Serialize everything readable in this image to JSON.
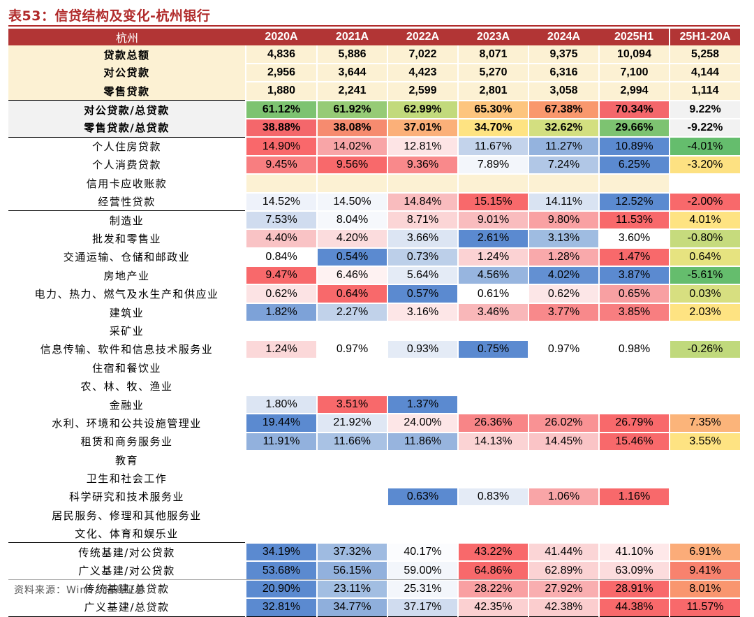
{
  "title": "表53：信贷结构及变化-杭州银行",
  "header": [
    "杭州",
    "2020A",
    "2021A",
    "2022A",
    "2023A",
    "2024A",
    "2025H1",
    "25H1-20A"
  ],
  "rows": [
    {
      "label": "贷款总额",
      "values": [
        "4,836",
        "5,886",
        "7,022",
        "8,071",
        "9,375",
        "10,094",
        "5,258"
      ],
      "colors": [
        "",
        "",
        "",
        "",
        "",
        "",
        ""
      ],
      "style": "bold hl"
    },
    {
      "label": "对公贷款",
      "values": [
        "2,956",
        "3,644",
        "4,423",
        "5,270",
        "6,316",
        "7,100",
        "4,144"
      ],
      "colors": [
        "",
        "",
        "",
        "",
        "",
        "",
        ""
      ],
      "style": "bold hl"
    },
    {
      "label": "零售贷款",
      "values": [
        "1,880",
        "2,241",
        "2,599",
        "2,801",
        "3,058",
        "2,994",
        "1,114"
      ],
      "colors": [
        "",
        "",
        "",
        "",
        "",
        "",
        ""
      ],
      "style": "bold hl"
    },
    {
      "label": "对公贷款/总贷款",
      "values": [
        "61.12%",
        "61.92%",
        "62.99%",
        "65.30%",
        "67.38%",
        "70.34%",
        "9.22%"
      ],
      "colors": [
        "#7dc371",
        "#96cb76",
        "#c2da7c",
        "#fdc57e",
        "#f9986d",
        "#f4676b",
        ""
      ],
      "style": "bold gray sep"
    },
    {
      "label": "零售贷款/总贷款",
      "values": [
        "38.88%",
        "38.08%",
        "37.01%",
        "34.70%",
        "32.62%",
        "29.66%",
        "-9.22%"
      ],
      "colors": [
        "#f4676b",
        "#f68b6f",
        "#fbb079",
        "#fee382",
        "#d3df80",
        "#7dc371",
        ""
      ],
      "style": "bold gray"
    },
    {
      "label": "个人住房贷款",
      "values": [
        "14.90%",
        "14.02%",
        "12.81%",
        "11.67%",
        "11.27%",
        "10.89%",
        "-4.01%"
      ],
      "colors": [
        "#f9686b",
        "#f8a5a7",
        "#fde4e5",
        "#c3d3eb",
        "#94b3de",
        "#5b8ad0",
        "#65bd6d"
      ],
      "style": "sep"
    },
    {
      "label": "个人消费贷款",
      "values": [
        "9.45%",
        "9.56%",
        "9.36%",
        "7.89%",
        "7.24%",
        "6.25%",
        "-3.20%"
      ],
      "colors": [
        "#f87e80",
        "#f8696b",
        "#f9898b",
        "#f3f6fb",
        "#b1c7e6",
        "#5b8ad0",
        "#fde182"
      ],
      "style": ""
    },
    {
      "label": "信用卡应收账款",
      "values": [
        "",
        "",
        "",
        "",
        "",
        "",
        ""
      ],
      "colors": [
        "#fcf1d3",
        "#fcf1d3",
        "#fcf1d3",
        "#fcf1d3",
        "#fcf1d3",
        "#fcf1d3",
        ""
      ],
      "style": ""
    },
    {
      "label": "经营性贷款",
      "values": [
        "14.52%",
        "14.50%",
        "14.84%",
        "15.15%",
        "14.11%",
        "12.52%",
        "-2.00%"
      ],
      "colors": [
        "#eef2fa",
        "#f3f6fb",
        "#f9bcbe",
        "#f8696b",
        "#d9e3f2",
        "#5b8ad0",
        "#f8696b"
      ],
      "style": ""
    },
    {
      "label": "制造业",
      "values": [
        "7.53%",
        "8.04%",
        "8.71%",
        "9.01%",
        "9.80%",
        "11.53%",
        "4.01%"
      ],
      "colors": [
        "#d0dcef",
        "#f6f8fc",
        "#fbd5d6",
        "#f9bcbe",
        "#f9a1a3",
        "#f8696b",
        "#fee382"
      ],
      "style": "sep"
    },
    {
      "label": "批发和零售业",
      "values": [
        "4.40%",
        "4.20%",
        "3.66%",
        "2.61%",
        "3.13%",
        "3.60%",
        "-0.80%"
      ],
      "colors": [
        "#f9c3c5",
        "#fbdcdd",
        "#dce5f3",
        "#5b8ad0",
        "#9fbce1",
        "#ffffff",
        "#c6db7d"
      ],
      "style": ""
    },
    {
      "label": "交通运输、仓储和邮政业",
      "values": [
        "0.84%",
        "0.54%",
        "0.73%",
        "1.24%",
        "1.28%",
        "1.47%",
        "0.64%"
      ],
      "colors": [
        "#ffffff",
        "#5b8ad0",
        "#bccfe9",
        "#fbd2d3",
        "#f9a9ab",
        "#f8696b",
        "#e6e380"
      ],
      "style": ""
    },
    {
      "label": "房地产业",
      "values": [
        "9.47%",
        "6.46%",
        "5.64%",
        "4.56%",
        "4.02%",
        "3.87%",
        "-5.61%"
      ],
      "colors": [
        "#f8696b",
        "#fef2f2",
        "#e4ebf6",
        "#97b5df",
        "#6390d2",
        "#5b8ad0",
        "#65bd6d"
      ],
      "style": ""
    },
    {
      "label": "电力、热力、燃气及水生产和供应业",
      "values": [
        "0.62%",
        "0.64%",
        "0.57%",
        "0.61%",
        "0.62%",
        "0.65%",
        "0.03%"
      ],
      "colors": [
        "#fce3e4",
        "#f8696b",
        "#5b8ad0",
        "#ffffff",
        "#fce6e7",
        "#f8a0a2",
        "#d7df80"
      ],
      "style": ""
    },
    {
      "label": "建筑业",
      "values": [
        "1.82%",
        "2.27%",
        "3.16%",
        "3.46%",
        "3.77%",
        "3.85%",
        "2.03%"
      ],
      "colors": [
        "#7da2d8",
        "#c1d2ea",
        "#fde6e7",
        "#f9b7b9",
        "#f8898b",
        "#f87e80",
        "#fee382"
      ],
      "style": ""
    },
    {
      "label": "采矿业",
      "values": [
        "",
        "",
        "",
        "",
        "",
        "",
        ""
      ],
      "colors": [
        "",
        "",
        "",
        "",
        "",
        "",
        ""
      ],
      "style": ""
    },
    {
      "label": "信息传输、软件和信息技术服务业",
      "values": [
        "1.24%",
        "0.97%",
        "0.93%",
        "0.75%",
        "0.97%",
        "0.98%",
        "-0.26%"
      ],
      "colors": [
        "#fbd8d9",
        "#ffffff",
        "#e4ebf6",
        "#5b8ad0",
        "#ffffff",
        "#ffffff",
        "#c0d97c"
      ],
      "style": ""
    },
    {
      "label": "住宿和餐饮业",
      "values": [
        "",
        "",
        "",
        "",
        "",
        "",
        ""
      ],
      "colors": [
        "",
        "",
        "",
        "",
        "",
        "",
        ""
      ],
      "style": ""
    },
    {
      "label": "农、林、牧、渔业",
      "values": [
        "",
        "",
        "",
        "",
        "",
        "",
        ""
      ],
      "colors": [
        "",
        "",
        "",
        "",
        "",
        "",
        ""
      ],
      "style": ""
    },
    {
      "label": "金融业",
      "values": [
        "1.80%",
        "3.51%",
        "1.37%",
        "",
        "",
        "",
        ""
      ],
      "colors": [
        "#dce5f3",
        "#f8696b",
        "#5b8ad0",
        "",
        "",
        "",
        ""
      ],
      "style": ""
    },
    {
      "label": "水利、环境和公共设施管理业",
      "values": [
        "19.44%",
        "21.92%",
        "24.00%",
        "26.36%",
        "26.02%",
        "26.79%",
        "7.35%"
      ],
      "colors": [
        "#5b8ad0",
        "#dfe7f4",
        "#fde6e7",
        "#f88587",
        "#f99294",
        "#f8696b",
        "#fbb47a"
      ],
      "style": ""
    },
    {
      "label": "租赁和商务服务业",
      "values": [
        "11.91%",
        "11.66%",
        "11.86%",
        "14.13%",
        "14.45%",
        "15.46%",
        "3.55%"
      ],
      "colors": [
        "#92b1dd",
        "#a9c2e4",
        "#97b4de",
        "#fbd3d4",
        "#fac4c6",
        "#f8696b",
        "#fee382"
      ],
      "style": ""
    },
    {
      "label": "教育",
      "values": [
        "",
        "",
        "",
        "",
        "",
        "",
        ""
      ],
      "colors": [
        "",
        "",
        "",
        "",
        "",
        "",
        ""
      ],
      "style": ""
    },
    {
      "label": "卫生和社会工作",
      "values": [
        "",
        "",
        "",
        "",
        "",
        "",
        ""
      ],
      "colors": [
        "",
        "",
        "",
        "",
        "",
        "",
        ""
      ],
      "style": ""
    },
    {
      "label": "科学研究和技术服务业",
      "values": [
        "",
        "",
        "0.63%",
        "0.83%",
        "1.06%",
        "1.16%",
        ""
      ],
      "colors": [
        "",
        "",
        "#5b8ad0",
        "#e4ebf6",
        "#f9a5a7",
        "#f8696b",
        ""
      ],
      "style": ""
    },
    {
      "label": "居民服务、修理和其他服务业",
      "values": [
        "",
        "",
        "",
        "",
        "",
        "",
        ""
      ],
      "colors": [
        "",
        "",
        "",
        "",
        "",
        "",
        ""
      ],
      "style": ""
    },
    {
      "label": "文化、体育和娱乐业",
      "values": [
        "",
        "",
        "",
        "",
        "",
        "",
        ""
      ],
      "colors": [
        "",
        "",
        "",
        "",
        "",
        "",
        ""
      ],
      "style": ""
    },
    {
      "label": "传统基建/对公贷款",
      "values": [
        "34.19%",
        "37.32%",
        "40.17%",
        "43.22%",
        "41.44%",
        "41.10%",
        "6.91%"
      ],
      "colors": [
        "#5b8ad0",
        "#9fbbe1",
        "#fbfcfe",
        "#f8696b",
        "#fbd5d6",
        "#fee8e9",
        "#fbac79"
      ],
      "style": "sep"
    },
    {
      "label": "广义基建/对公贷款",
      "values": [
        "53.68%",
        "56.15%",
        "59.00%",
        "64.86%",
        "62.89%",
        "63.09%",
        "9.41%"
      ],
      "colors": [
        "#5b8ad0",
        "#92b1dd",
        "#f3f6fb",
        "#f8696b",
        "#fbd2d3",
        "#fcdcdd",
        "#f8826e"
      ],
      "style": ""
    },
    {
      "label": "传统基建/总贷款",
      "values": [
        "20.90%",
        "23.11%",
        "25.31%",
        "28.22%",
        "27.92%",
        "28.91%",
        "8.01%"
      ],
      "colors": [
        "#5b8ad0",
        "#a2bee2",
        "#f3f6fb",
        "#f9a0a2",
        "#f9aeb0",
        "#f8696b",
        "#f9966f"
      ],
      "style": ""
    },
    {
      "label": "广义基建/总贷款",
      "values": [
        "32.81%",
        "34.77%",
        "37.17%",
        "42.35%",
        "42.38%",
        "44.38%",
        "11.57%"
      ],
      "colors": [
        "#5b8ad0",
        "#8fafdc",
        "#d0dcef",
        "#fbd0d1",
        "#fbcdce",
        "#f8696b",
        "#f8696b"
      ],
      "style": "endrule"
    }
  ],
  "source": "资料来源：Wind，招商证券"
}
